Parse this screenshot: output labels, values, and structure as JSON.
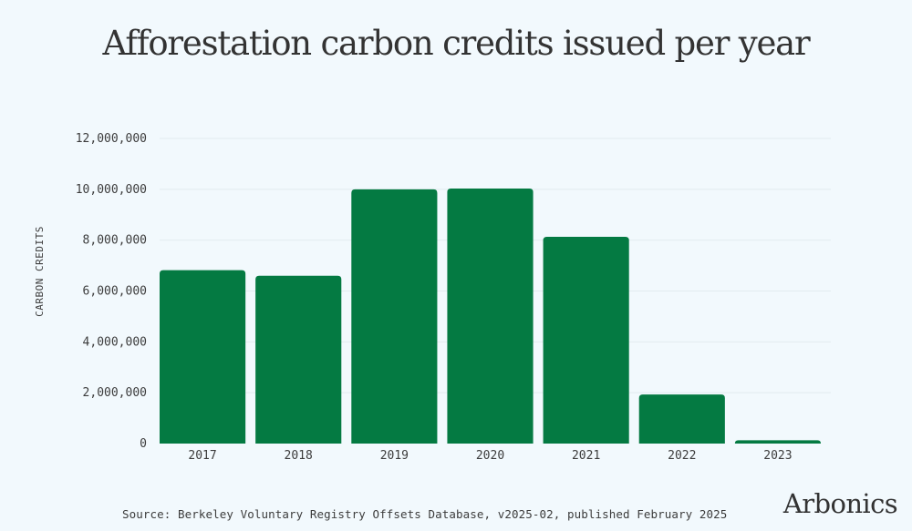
{
  "colors": {
    "bar": "#047a42",
    "background": "#f2f9fd",
    "grid": "#e3ebef",
    "text": "#3c3c3c"
  },
  "brand": {
    "logo": "Arbonics"
  },
  "source_note": "Source: Berkeley Voluntary Registry Offsets Database, v2025-02, published February 2025",
  "chart_data": {
    "type": "bar",
    "title": "Afforestation carbon credits issued per year",
    "xlabel": "",
    "ylabel": "CARBON CREDITS",
    "categories": [
      "2017",
      "2018",
      "2019",
      "2020",
      "2021",
      "2022",
      "2023"
    ],
    "values": [
      6820000,
      6600000,
      10000000,
      10030000,
      8130000,
      1930000,
      130000
    ],
    "ylim": [
      0,
      12000000
    ],
    "yticks": [
      0,
      2000000,
      4000000,
      6000000,
      8000000,
      10000000,
      12000000
    ],
    "ytick_labels": [
      "0",
      "2,000,000",
      "4,000,000",
      "6,000,000",
      "8,000,000",
      "10,000,000",
      "12,000,000"
    ],
    "grid": true,
    "legend": "none"
  }
}
